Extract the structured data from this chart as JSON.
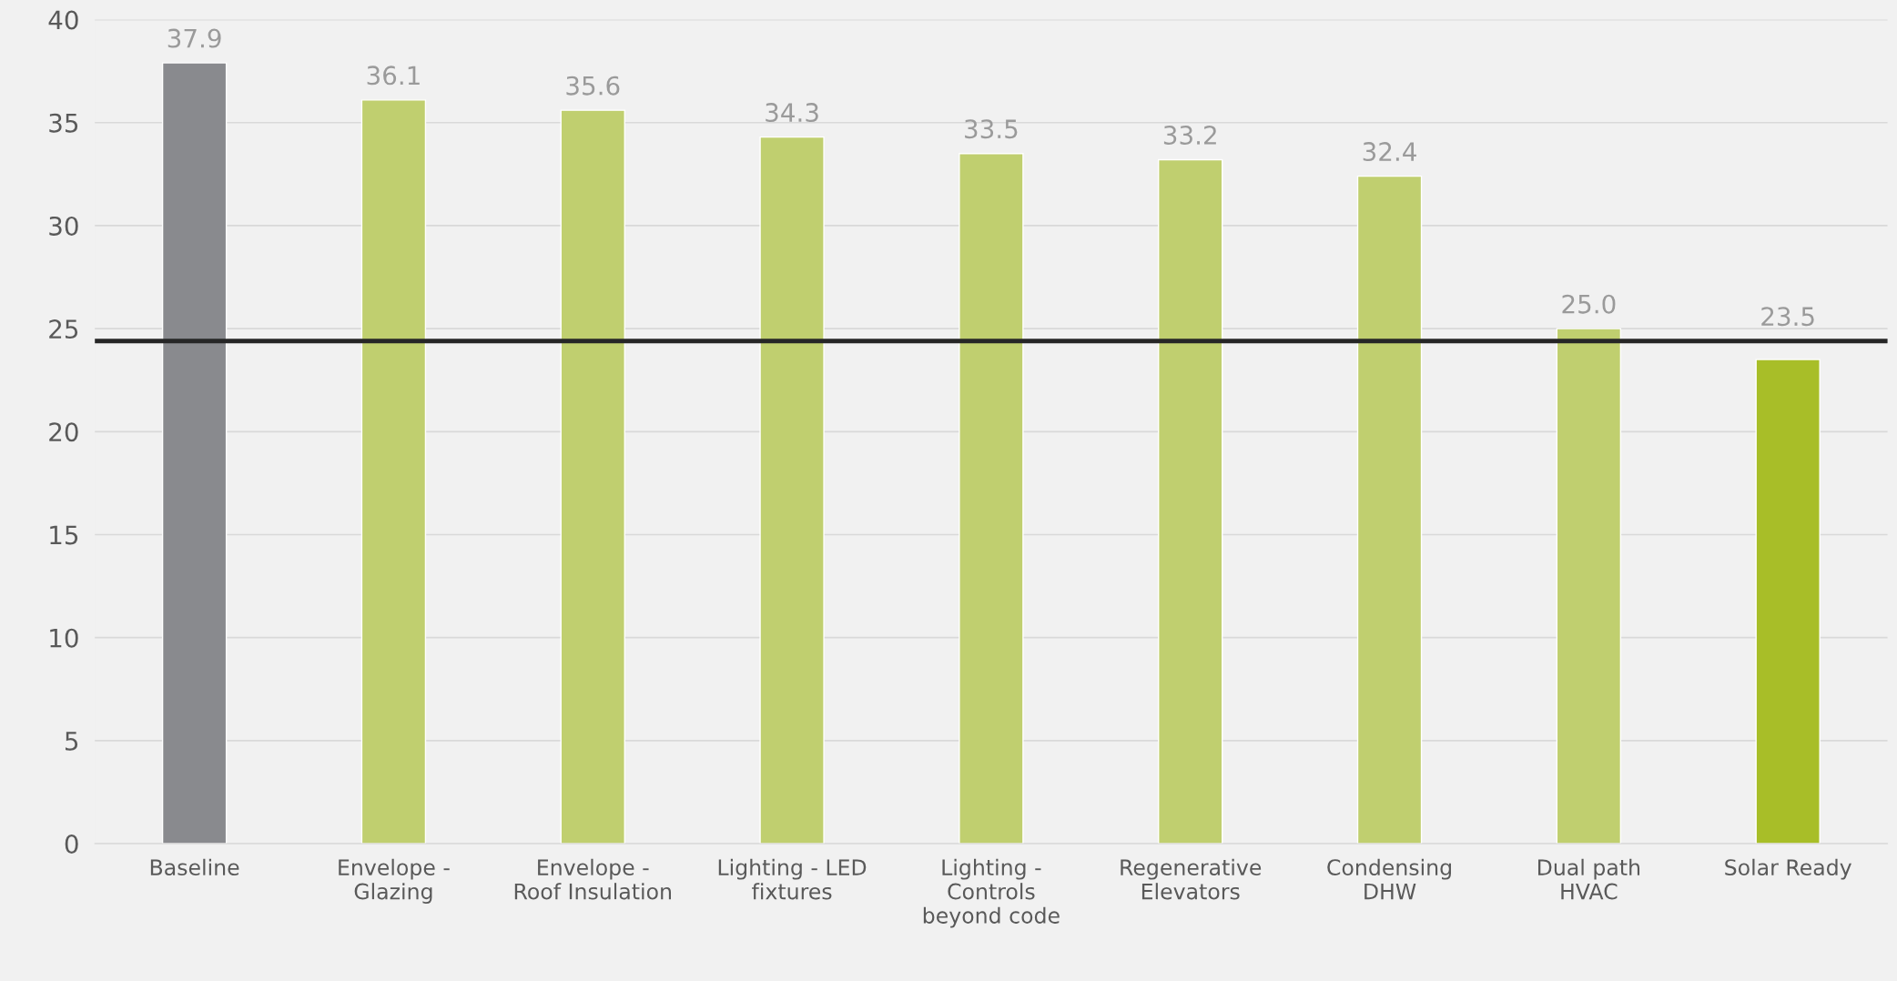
{
  "chart_data": {
    "type": "bar",
    "categories": [
      "Baseline",
      "Envelope -\nGlazing",
      "Envelope -\nRoof Insulation",
      "Lighting - LED\nfixtures",
      "Lighting -\nControls\nbeyond code",
      "Regenerative\nElevators",
      "Condensing\nDHW",
      "Dual path\nHVAC",
      "Solar Ready"
    ],
    "values": [
      37.9,
      36.1,
      35.6,
      34.3,
      33.5,
      33.2,
      32.4,
      25.0,
      23.5
    ],
    "colors": [
      "#898a8e",
      "#c0cf6f",
      "#c0cf6f",
      "#c0cf6f",
      "#c0cf6f",
      "#c0cf6f",
      "#c0cf6f",
      "#c0cf6f",
      "#a8be28"
    ],
    "value_labels": [
      "37.9",
      "36.1",
      "35.6",
      "34.3",
      "33.5",
      "33.2",
      "32.4",
      "25.0",
      "23.5"
    ],
    "ylim": [
      0,
      40
    ],
    "yticks": [
      0,
      5,
      10,
      15,
      20,
      25,
      30,
      35,
      40
    ],
    "grid": "y",
    "ref_lines": [
      {
        "axis": "y",
        "value": 24.4,
        "color": "#262626"
      }
    ]
  }
}
